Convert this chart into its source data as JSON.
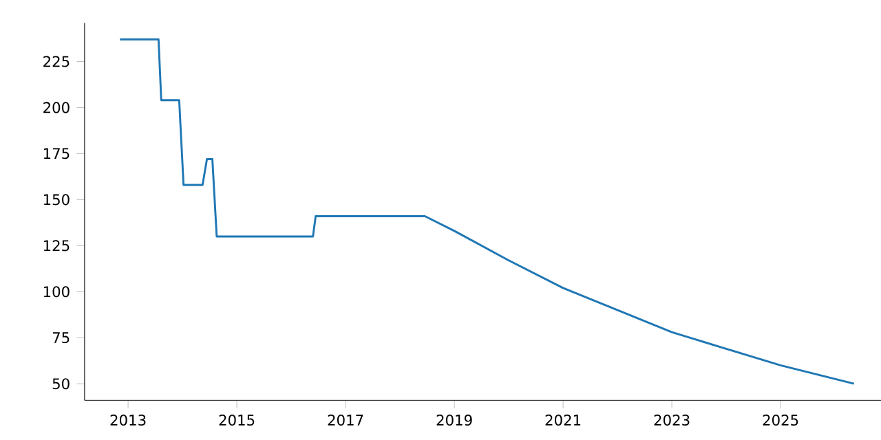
{
  "chart_data": {
    "type": "line",
    "x": [
      2012.85,
      2013.56,
      2013.61,
      2013.94,
      2014.02,
      2014.37,
      2014.45,
      2014.55,
      2014.63,
      2016.4,
      2016.45,
      2018.46,
      2019,
      2020,
      2021,
      2022,
      2023,
      2024,
      2025,
      2026.35
    ],
    "values": [
      237,
      237,
      204,
      204,
      158,
      158,
      172,
      172,
      130,
      130,
      141,
      141,
      133,
      117,
      102,
      90,
      78,
      69,
      60,
      50
    ],
    "color": "#1f77b4",
    "xlim": [
      2012.2,
      2027
    ],
    "ylim": [
      41,
      246
    ],
    "xticks": [
      2013,
      2015,
      2017,
      2019,
      2021,
      2023,
      2025
    ],
    "yticks": [
      50,
      75,
      100,
      125,
      150,
      175,
      200,
      225
    ],
    "grid": false,
    "marker": "none",
    "line_style": "solid"
  }
}
